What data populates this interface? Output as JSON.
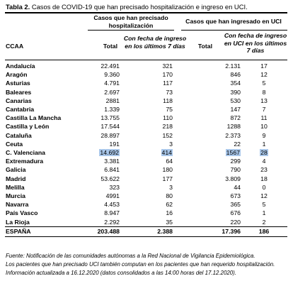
{
  "caption": {
    "label": "Tabla 2.",
    "text": " Casos de COVID-19 que han precisado hospitalización e ingreso en UCI."
  },
  "headers": {
    "group_hosp": "Casos que han precisado hospitalización",
    "group_uci": "Casos que han ingresado en UCI",
    "ccaa": "CCAA",
    "total_hosp": "Total",
    "recent_hosp": "Con fecha de ingreso en los últimos 7 días",
    "total_uci": "Total",
    "recent_uci": "Con fecha de ingreso en UCI en los últimos 7 días"
  },
  "rows": [
    {
      "name": "Andalucía",
      "hosp_total": "22.491",
      "hosp_7d": "321",
      "uci_total": "2.131",
      "uci_7d": "17"
    },
    {
      "name": "Aragón",
      "hosp_total": "9.360",
      "hosp_7d": "170",
      "uci_total": "846",
      "uci_7d": "12"
    },
    {
      "name": "Asturias",
      "hosp_total": "4.791",
      "hosp_7d": "117",
      "uci_total": "354",
      "uci_7d": "5"
    },
    {
      "name": "Baleares",
      "hosp_total": "2.697",
      "hosp_7d": "73",
      "uci_total": "390",
      "uci_7d": "8"
    },
    {
      "name": "Canarias",
      "hosp_total": "2881",
      "hosp_7d": "118",
      "uci_total": "530",
      "uci_7d": "13"
    },
    {
      "name": "Cantabria",
      "hosp_total": "1.339",
      "hosp_7d": "75",
      "uci_total": "147",
      "uci_7d": "7"
    },
    {
      "name": "Castilla La Mancha",
      "hosp_total": "13.755",
      "hosp_7d": "110",
      "uci_total": "872",
      "uci_7d": "11"
    },
    {
      "name": "Castilla y León",
      "hosp_total": "17.544",
      "hosp_7d": "218",
      "uci_total": "1288",
      "uci_7d": "10"
    },
    {
      "name": "Cataluña",
      "hosp_total": "28.897",
      "hosp_7d": "152",
      "uci_total": "2.373",
      "uci_7d": "9"
    },
    {
      "name": "Ceuta",
      "hosp_total": "191",
      "hosp_7d": "3",
      "uci_total": "22",
      "uci_7d": "1"
    },
    {
      "name": "C. Valenciana",
      "hosp_total": "14.692",
      "hosp_7d": "414",
      "uci_total": "1567",
      "uci_7d": "28"
    },
    {
      "name": "Extremadura",
      "hosp_total": "3.381",
      "hosp_7d": "64",
      "uci_total": "299",
      "uci_7d": "4"
    },
    {
      "name": "Galicia",
      "hosp_total": "6.841",
      "hosp_7d": "180",
      "uci_total": "790",
      "uci_7d": "23"
    },
    {
      "name": "Madrid",
      "hosp_total": "53.622",
      "hosp_7d": "177",
      "uci_total": "3.809",
      "uci_7d": "18"
    },
    {
      "name": "Melilla",
      "hosp_total": "323",
      "hosp_7d": "3",
      "uci_total": "44",
      "uci_7d": "0"
    },
    {
      "name": "Murcia",
      "hosp_total": "4991",
      "hosp_7d": "80",
      "uci_total": "673",
      "uci_7d": "12"
    },
    {
      "name": "Navarra",
      "hosp_total": "4.453",
      "hosp_7d": "62",
      "uci_total": "365",
      "uci_7d": "5"
    },
    {
      "name": "País Vasco",
      "hosp_total": "8.947",
      "hosp_7d": "16",
      "uci_total": "676",
      "uci_7d": "1"
    },
    {
      "name": "La Rioja",
      "hosp_total": "2.292",
      "hosp_7d": "35",
      "uci_total": "220",
      "uci_7d": "2"
    }
  ],
  "total": {
    "name": "ESPAÑA",
    "hosp_total": "203.488",
    "hosp_7d": "2.388",
    "uci_total": "17.396",
    "uci_7d": "186"
  },
  "highlighted_row": "C. Valenciana",
  "highlight_color": "#a9c7ea",
  "footnotes": [
    "Fuente: Notificación de las comunidades autónomas a la Red Nacional de Vigilancia Epidemiológica.",
    "Los pacientes que han precisado UCI también computan en los pacientes que han requerido hospitalización.",
    "Información actualizada a 16.12.2020 (datos consolidados a las 14:00 horas del 17.12.2020)."
  ]
}
